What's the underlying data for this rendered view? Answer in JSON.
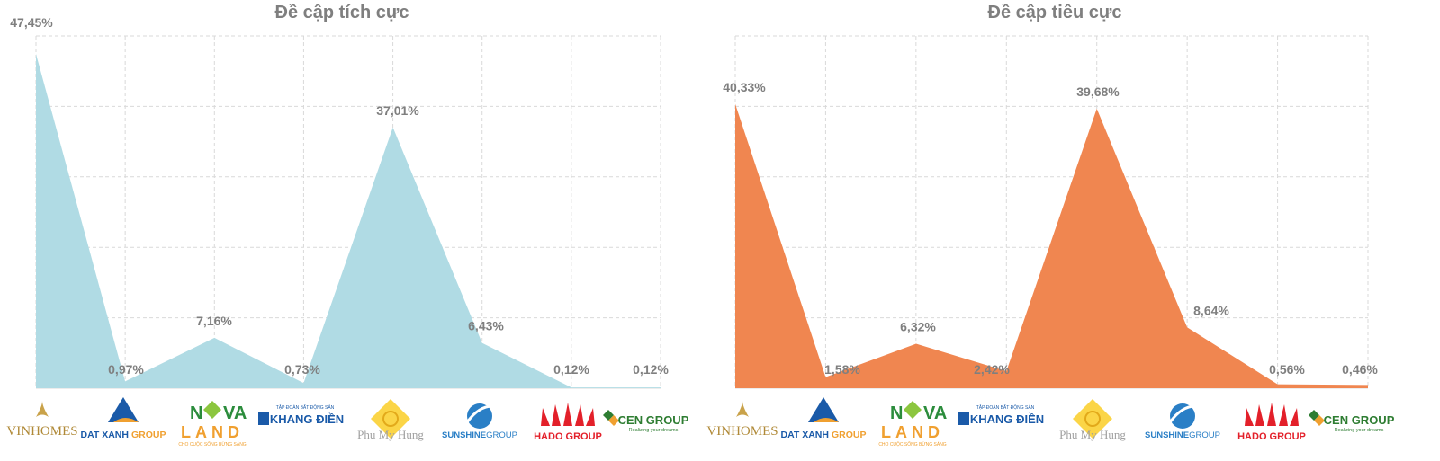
{
  "chart_data": [
    {
      "type": "area",
      "title": "Đề cập tích cực",
      "categories": [
        "VINHOMES",
        "DAT XANH GROUP",
        "NOVALAND",
        "KHANG ĐIỀN",
        "Phu My Hung",
        "SUNSHINE GROUP",
        "HADO GROUP",
        "CEN GROUP"
      ],
      "values": [
        47.45,
        0.97,
        7.16,
        0.73,
        37.01,
        6.43,
        0.12,
        0.12
      ],
      "data_labels": [
        "47,45%",
        "0,97%",
        "7,16%",
        "0,73%",
        "37,01%",
        "6,43%",
        "0,12%",
        "0,12%"
      ],
      "ylim": [
        0,
        50
      ],
      "grid": true,
      "color": "#b0dbe4"
    },
    {
      "type": "area",
      "title": "Đề cập tiêu cực",
      "categories": [
        "VINHOMES",
        "DAT XANH GROUP",
        "NOVALAND",
        "KHANG ĐIỀN",
        "Phu My Hung",
        "SUNSHINE GROUP",
        "HADO GROUP",
        "CEN GROUP"
      ],
      "values": [
        40.33,
        1.58,
        6.32,
        2.42,
        39.68,
        8.64,
        0.56,
        0.46
      ],
      "data_labels": [
        "40,33%",
        "1,58%",
        "6,32%",
        "2,42%",
        "39,68%",
        "8,64%",
        "0,56%",
        "0,46%"
      ],
      "ylim": [
        0,
        50
      ],
      "grid": true,
      "color": "#f08650"
    }
  ],
  "logos": {
    "vinhomes": "VINHOMES",
    "datxanh_a": "DAT XANH",
    "datxanh_b": "GROUP",
    "novaland_a": "N",
    "novaland_b": "VA",
    "novaland_c": "LAND",
    "novaland_tagline": "CHO CUỘC SỐNG BỪNG SÁNG",
    "khangdien_top": "TẬP ĐOÀN BẤT ĐỘNG SẢN",
    "khangdien_main": "KHANG ĐIỀN",
    "phumyhung": "Phu My Hung",
    "sunshine": "SUNSHINE",
    "sunshine_b": "GROUP",
    "hado": "HADO GROUP",
    "cen": "CEN GROUP",
    "cen_tagline": "Realizing your dreams"
  }
}
